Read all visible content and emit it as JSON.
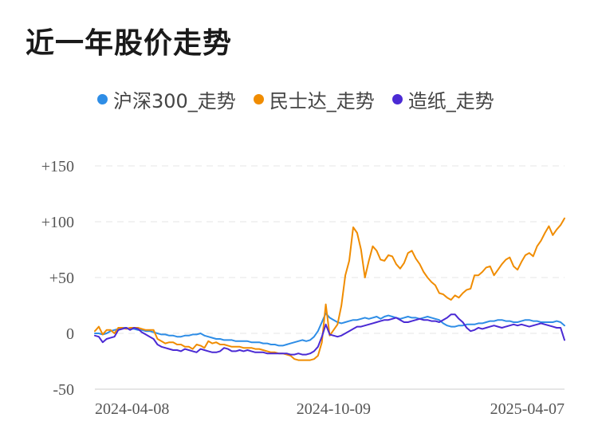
{
  "page": {
    "title": "近一年股价走势"
  },
  "chart_data": {
    "type": "line",
    "title": "近一年股价走势",
    "xlabel": "",
    "ylabel": "",
    "ylim": [
      -50,
      150
    ],
    "grid": true,
    "legend_position": "top",
    "y_ticks": [
      150,
      100,
      50,
      0,
      -50
    ],
    "y_tick_labels": [
      "+150",
      "+100",
      "+50",
      "0",
      "-50"
    ],
    "x_tick_labels": [
      "2024-04-08",
      "2024-10-09",
      "2025-04-07"
    ],
    "x_ticks_index": [
      0,
      61,
      120
    ],
    "x": [
      "2024-04-08",
      "2024-04-11",
      "2024-04-14",
      "2024-04-17",
      "2024-04-20",
      "2024-04-23",
      "2024-04-26",
      "2024-04-29",
      "2024-05-02",
      "2024-05-05",
      "2024-05-08",
      "2024-05-11",
      "2024-05-14",
      "2024-05-17",
      "2024-05-20",
      "2024-05-23",
      "2024-05-26",
      "2024-05-29",
      "2024-06-01",
      "2024-06-04",
      "2024-06-07",
      "2024-06-10",
      "2024-06-13",
      "2024-06-16",
      "2024-06-19",
      "2024-06-22",
      "2024-06-25",
      "2024-06-28",
      "2024-07-01",
      "2024-07-04",
      "2024-07-07",
      "2024-07-10",
      "2024-07-13",
      "2024-07-16",
      "2024-07-19",
      "2024-07-22",
      "2024-07-25",
      "2024-07-28",
      "2024-07-31",
      "2024-08-03",
      "2024-08-06",
      "2024-08-09",
      "2024-08-12",
      "2024-08-15",
      "2024-08-18",
      "2024-08-21",
      "2024-08-24",
      "2024-08-27",
      "2024-08-30",
      "2024-09-02",
      "2024-09-05",
      "2024-09-08",
      "2024-09-11",
      "2024-09-14",
      "2024-09-17",
      "2024-09-20",
      "2024-09-23",
      "2024-09-26",
      "2024-09-29",
      "2024-10-02",
      "2024-10-05",
      "2024-10-09",
      "2024-10-12",
      "2024-10-15",
      "2024-10-18",
      "2024-10-21",
      "2024-10-24",
      "2024-10-27",
      "2024-10-30",
      "2024-11-02",
      "2024-11-05",
      "2024-11-08",
      "2024-11-11",
      "2024-11-14",
      "2024-11-17",
      "2024-11-20",
      "2024-11-23",
      "2024-11-26",
      "2024-11-29",
      "2024-12-02",
      "2024-12-05",
      "2024-12-08",
      "2024-12-11",
      "2024-12-14",
      "2024-12-17",
      "2024-12-20",
      "2024-12-23",
      "2024-12-26",
      "2024-12-29",
      "2025-01-01",
      "2025-01-04",
      "2025-01-07",
      "2025-01-10",
      "2025-01-13",
      "2025-01-16",
      "2025-01-19",
      "2025-01-22",
      "2025-01-25",
      "2025-01-28",
      "2025-01-31",
      "2025-02-03",
      "2025-02-06",
      "2025-02-09",
      "2025-02-12",
      "2025-02-15",
      "2025-02-18",
      "2025-02-21",
      "2025-02-24",
      "2025-02-27",
      "2025-03-02",
      "2025-03-05",
      "2025-03-08",
      "2025-03-11",
      "2025-03-14",
      "2025-03-17",
      "2025-03-20",
      "2025-03-23",
      "2025-03-26",
      "2025-03-29",
      "2025-04-01",
      "2025-04-07"
    ],
    "series": [
      {
        "name": "沪深300_走势",
        "color": "#2e8de6",
        "values": [
          0,
          0,
          -1,
          0,
          2,
          3,
          4,
          5,
          5,
          4,
          4,
          3,
          3,
          2,
          2,
          1,
          0,
          -1,
          -1,
          -2,
          -2,
          -3,
          -3,
          -2,
          -2,
          -1,
          -1,
          0,
          -2,
          -3,
          -4,
          -5,
          -5,
          -6,
          -6,
          -6,
          -7,
          -7,
          -7,
          -7,
          -8,
          -8,
          -8,
          -9,
          -9,
          -10,
          -10,
          -11,
          -11,
          -10,
          -9,
          -8,
          -7,
          -6,
          -7,
          -6,
          -3,
          2,
          10,
          18,
          14,
          12,
          10,
          9,
          10,
          11,
          12,
          12,
          13,
          14,
          13,
          14,
          15,
          13,
          15,
          16,
          15,
          14,
          13,
          14,
          15,
          14,
          14,
          13,
          14,
          15,
          14,
          13,
          12,
          9,
          7,
          6,
          6,
          7,
          7,
          8,
          8,
          8,
          9,
          9,
          10,
          11,
          11,
          12,
          12,
          11,
          11,
          10,
          10,
          11,
          12,
          12,
          11,
          11,
          10,
          10,
          10,
          10,
          11,
          10,
          7
        ]
      },
      {
        "name": "民士达_走势",
        "color": "#f08c00",
        "values": [
          2,
          6,
          -1,
          3,
          3,
          0,
          5,
          5,
          4,
          5,
          5,
          5,
          4,
          3,
          3,
          3,
          -5,
          -7,
          -9,
          -8,
          -8,
          -10,
          -10,
          -12,
          -12,
          -14,
          -10,
          -11,
          -13,
          -7,
          -9,
          -8,
          -10,
          -10,
          -11,
          -12,
          -12,
          -12,
          -13,
          -13,
          -13,
          -14,
          -14,
          -15,
          -16,
          -17,
          -17,
          -18,
          -18,
          -19,
          -20,
          -23,
          -24,
          -24,
          -24,
          -24,
          -23,
          -20,
          -8,
          26,
          -2,
          3,
          8,
          25,
          52,
          65,
          95,
          90,
          75,
          50,
          65,
          78,
          74,
          66,
          65,
          70,
          69,
          62,
          58,
          63,
          72,
          74,
          67,
          62,
          55,
          50,
          46,
          43,
          36,
          35,
          32,
          30,
          34,
          32,
          36,
          39,
          40,
          52,
          52,
          55,
          59,
          60,
          52,
          57,
          62,
          66,
          68,
          60,
          57,
          64,
          70,
          72,
          69,
          78,
          83,
          90,
          96,
          88,
          93,
          97,
          103
        ]
      },
      {
        "name": "造纸_走势",
        "color": "#4b2ad4",
        "values": [
          -2,
          -3,
          -8,
          -5,
          -4,
          -3,
          3,
          4,
          5,
          3,
          5,
          4,
          1,
          -1,
          -3,
          -5,
          -10,
          -12,
          -13,
          -14,
          -15,
          -15,
          -16,
          -14,
          -15,
          -16,
          -17,
          -14,
          -15,
          -16,
          -17,
          -17,
          -16,
          -13,
          -14,
          -16,
          -16,
          -15,
          -16,
          -15,
          -16,
          -17,
          -17,
          -17,
          -18,
          -18,
          -18,
          -18,
          -18,
          -18,
          -19,
          -19,
          -18,
          -19,
          -19,
          -18,
          -16,
          -12,
          -3,
          8,
          -1,
          -2,
          -3,
          -2,
          0,
          2,
          4,
          6,
          6,
          7,
          8,
          9,
          10,
          11,
          12,
          12,
          13,
          14,
          12,
          10,
          10,
          11,
          12,
          13,
          12,
          12,
          11,
          11,
          10,
          12,
          14,
          17,
          17,
          13,
          10,
          5,
          2,
          3,
          5,
          4,
          5,
          6,
          7,
          6,
          5,
          6,
          7,
          8,
          7,
          8,
          7,
          6,
          7,
          8,
          9,
          8,
          7,
          6,
          5,
          5,
          -6
        ]
      }
    ]
  }
}
